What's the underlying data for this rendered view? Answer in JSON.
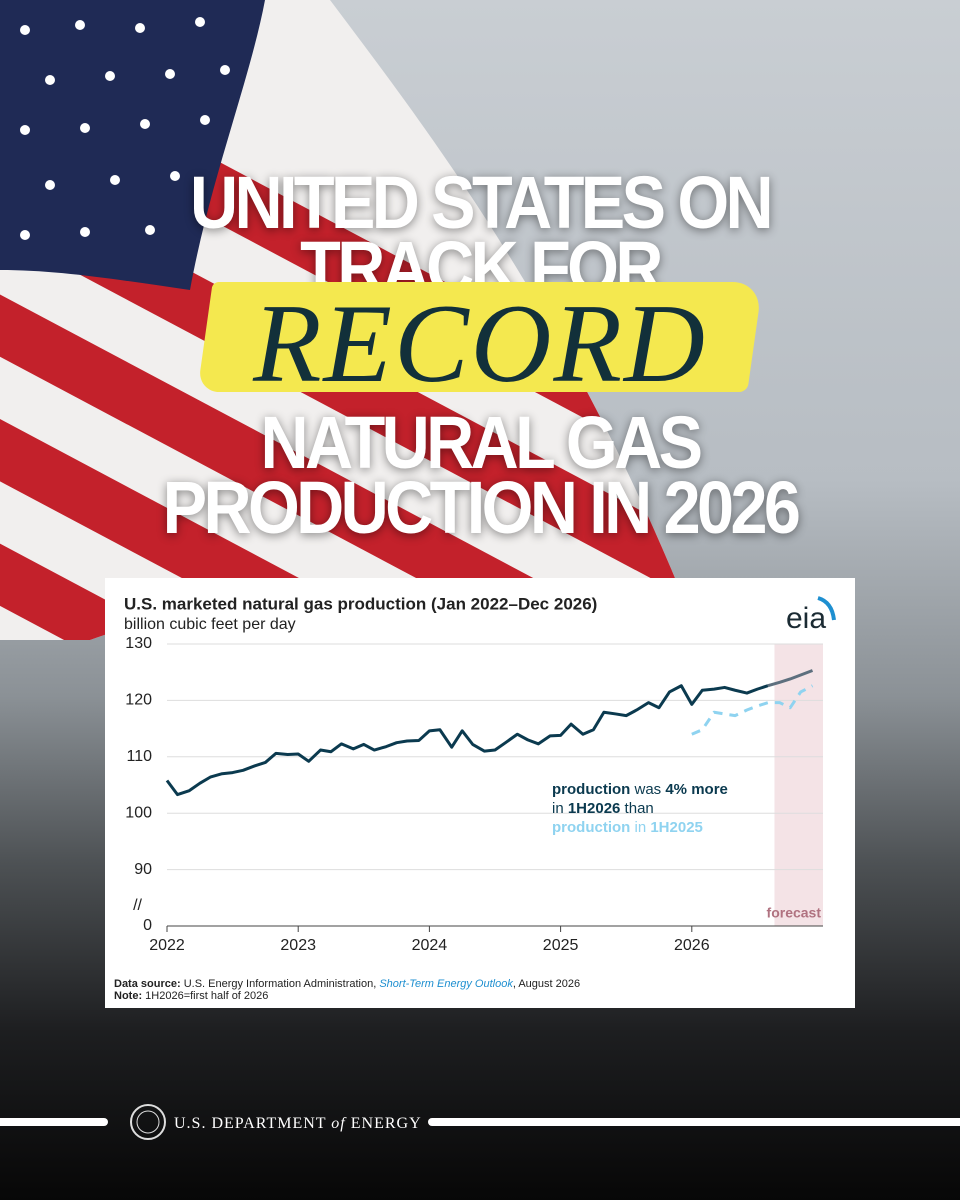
{
  "headline": {
    "lines": [
      "UNITED STATES ON",
      "TRACK FOR",
      "RECORD",
      "NATURAL GAS",
      "PRODUCTION IN 2026"
    ]
  },
  "chart_data": {
    "type": "line",
    "title": "U.S. marketed natural gas production (Jan 2022–Dec 2026)",
    "subtitle": "billion cubic feet per day",
    "logo": "eia",
    "x": [
      2022.0,
      2022.08,
      2022.17,
      2022.25,
      2022.33,
      2022.42,
      2022.5,
      2022.58,
      2022.67,
      2022.75,
      2022.83,
      2022.92,
      2023.0,
      2023.08,
      2023.17,
      2023.25,
      2023.33,
      2023.42,
      2023.5,
      2023.58,
      2023.67,
      2023.75,
      2023.83,
      2023.92,
      2024.0,
      2024.08,
      2024.17,
      2024.25,
      2024.33,
      2024.42,
      2024.5,
      2024.58,
      2024.67,
      2024.75,
      2024.83,
      2024.92,
      2025.0,
      2025.08,
      2025.17,
      2025.25,
      2025.33,
      2025.42,
      2025.5,
      2025.58,
      2025.67,
      2025.75,
      2025.83,
      2025.92,
      2026.0,
      2026.08,
      2026.17,
      2026.25,
      2026.33,
      2026.42,
      2026.5,
      2026.58,
      2026.67,
      2026.75,
      2026.83,
      2026.92
    ],
    "series": [
      {
        "color": "#0b3a4f",
        "values": [
          105.8,
          103.3,
          104.0,
          105.3,
          106.4,
          107.0,
          107.2,
          107.6,
          108.4,
          109.0,
          110.6,
          110.4,
          110.5,
          109.2,
          111.2,
          110.9,
          112.3,
          111.4,
          112.2,
          111.2,
          111.8,
          112.5,
          112.8,
          112.9,
          114.6,
          114.8,
          111.7,
          114.6,
          112.2,
          111.0,
          111.2,
          112.5,
          114.0,
          113.0,
          112.3,
          113.7,
          113.8,
          115.8,
          114.0,
          114.8,
          117.9,
          117.6,
          117.3,
          118.3,
          119.6,
          118.7,
          121.5,
          122.6,
          119.3,
          121.8,
          122.0,
          122.3,
          121.8,
          121.3,
          122.0,
          122.6,
          null,
          null,
          null,
          null
        ]
      },
      {
        "color": "#5d6f7e",
        "values": [
          null,
          null,
          null,
          null,
          null,
          null,
          null,
          null,
          null,
          null,
          null,
          null,
          null,
          null,
          null,
          null,
          null,
          null,
          null,
          null,
          null,
          null,
          null,
          null,
          null,
          null,
          null,
          null,
          null,
          null,
          null,
          null,
          null,
          null,
          null,
          null,
          null,
          null,
          null,
          null,
          null,
          null,
          null,
          null,
          null,
          null,
          null,
          null,
          null,
          null,
          null,
          null,
          null,
          null,
          null,
          122.6,
          123.2,
          123.8,
          124.5,
          125.3
        ]
      },
      {
        "color": "#8fd3f0",
        "dashed": true,
        "values": [
          null,
          null,
          null,
          null,
          null,
          null,
          null,
          null,
          null,
          null,
          null,
          null,
          null,
          null,
          null,
          null,
          null,
          null,
          null,
          null,
          null,
          null,
          null,
          null,
          null,
          null,
          null,
          null,
          null,
          null,
          null,
          null,
          null,
          null,
          null,
          null,
          null,
          null,
          null,
          null,
          null,
          null,
          null,
          null,
          null,
          null,
          null,
          null,
          114.0,
          114.8,
          117.9,
          117.6,
          117.3,
          118.3,
          119.0,
          119.6,
          119.6,
          118.7,
          121.5,
          122.6
        ]
      }
    ],
    "xlim": [
      2022,
      2027
    ],
    "xticks": [
      2022,
      2023,
      2024,
      2025,
      2026
    ],
    "ylim": [
      80,
      130
    ],
    "yticks": [
      0,
      90,
      100,
      110,
      120,
      130
    ],
    "axis_break": "//",
    "grid": true,
    "forecast_start": 2026.63,
    "forecast_label": "forecast",
    "annotation": [
      [
        "production",
        " was ",
        "4% more"
      ],
      [
        "in ",
        "1H2026",
        " than"
      ],
      [
        "production",
        " in ",
        "1H2025"
      ]
    ],
    "source": {
      "label": "Data source:",
      "text": " U.S. Energy Information Administration, ",
      "publication": "Short-Term Energy Outlook",
      "date": ", August 2026"
    },
    "note": {
      "label": "Note:",
      "text": " 1H2026=first half of 2026"
    }
  },
  "footer": {
    "agency": "U.S. DEPARTMENT",
    "of": "of",
    "energy": "ENERGY"
  }
}
